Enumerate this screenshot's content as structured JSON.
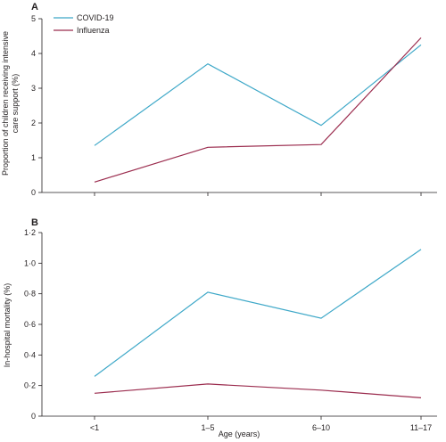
{
  "chart_data": [
    {
      "type": "line",
      "panel": "A",
      "ylabel_lines": [
        "Proportion of children receiving intensive",
        "care support (%)"
      ],
      "xlabel": "",
      "categories": [
        "<1",
        "1–5",
        "6–10",
        "11–17"
      ],
      "ylim": [
        0,
        5
      ],
      "yticks": [
        "0",
        "1",
        "2",
        "3",
        "4",
        "5"
      ],
      "legend": {
        "placement": "top-left"
      },
      "series": [
        {
          "name": "COVID-19",
          "color": "#3ea8c8",
          "values": [
            1.35,
            3.7,
            1.93,
            4.25
          ]
        },
        {
          "name": "Influenza",
          "color": "#9b2c4e",
          "values": [
            0.3,
            1.3,
            1.38,
            4.45
          ]
        }
      ]
    },
    {
      "type": "line",
      "panel": "B",
      "ylabel": "In-hospital mortality (%)",
      "xlabel": "Age (years)",
      "categories": [
        "<1",
        "1–5",
        "6–10",
        "11–17"
      ],
      "ylim": [
        0,
        1.2
      ],
      "yticks": [
        "0",
        "0·2",
        "0·4",
        "0·6",
        "0·8",
        "1·0",
        "1·2"
      ],
      "series": [
        {
          "name": "COVID-19",
          "color": "#3ea8c8",
          "values": [
            0.26,
            0.81,
            0.64,
            1.09
          ]
        },
        {
          "name": "Influenza",
          "color": "#9b2c4e",
          "values": [
            0.15,
            0.21,
            0.17,
            0.12
          ]
        }
      ]
    }
  ]
}
